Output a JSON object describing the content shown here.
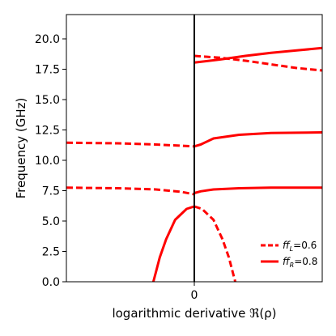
{
  "chart_data": {
    "type": "line",
    "title": "",
    "xlabel": "logarithmic derivative ℜ(ρ)",
    "ylabel": "Frequency (GHz)",
    "xlim": [
      -1,
      1
    ],
    "ylim": [
      0,
      22
    ],
    "xticks": [
      0
    ],
    "xtick_labels": [
      "0"
    ],
    "yticks": [
      0,
      2.5,
      5,
      7.5,
      10,
      12.5,
      15,
      17.5,
      20
    ],
    "ytick_labels": [
      "0.0",
      "2.5",
      "5.0",
      "7.5",
      "10.0",
      "12.5",
      "15.0",
      "17.5",
      "20.0"
    ],
    "grid": false,
    "legend_position": "lower-right",
    "color": "#ff0000",
    "zero_line_color": "#000000",
    "series": [
      {
        "name": "ff_L=0.6",
        "style": "dashed",
        "branches": [
          {
            "x": [
              -1.0,
              -0.6,
              -0.3,
              -0.1,
              0.0
            ],
            "y": [
              7.75,
              7.7,
              7.6,
              7.4,
              7.2
            ]
          },
          {
            "x": [
              -1.0,
              -0.6,
              -0.3,
              -0.1,
              0.0
            ],
            "y": [
              11.45,
              11.4,
              11.3,
              11.2,
              11.15
            ]
          },
          {
            "x": [
              0.0,
              0.2,
              0.4,
              0.6,
              0.8,
              1.0
            ],
            "y": [
              18.6,
              18.45,
              18.2,
              17.9,
              17.6,
              17.4
            ]
          },
          {
            "x": [
              0.0,
              0.06,
              0.15,
              0.22,
              0.27,
              0.3,
              0.32
            ],
            "y": [
              6.2,
              6.0,
              5.1,
              3.5,
              2.0,
              0.8,
              0.0
            ]
          }
        ]
      },
      {
        "name": "ff_R=0.8",
        "style": "solid",
        "branches": [
          {
            "x": [
              0.0,
              0.05,
              0.15,
              0.35,
              0.6,
              1.0
            ],
            "y": [
              7.3,
              7.45,
              7.6,
              7.7,
              7.75,
              7.75
            ]
          },
          {
            "x": [
              0.0,
              0.05,
              0.15,
              0.35,
              0.6,
              1.0
            ],
            "y": [
              11.15,
              11.3,
              11.8,
              12.1,
              12.25,
              12.3
            ]
          },
          {
            "x": [
              0.0,
              0.2,
              0.4,
              0.6,
              0.8,
              1.0
            ],
            "y": [
              18.05,
              18.3,
              18.6,
              18.85,
              19.05,
              19.25
            ]
          },
          {
            "x": [
              -0.32,
              -0.3,
              -0.27,
              -0.22,
              -0.15,
              -0.06,
              0.0
            ],
            "y": [
              0.0,
              0.8,
              2.0,
              3.5,
              5.1,
              6.0,
              6.2
            ]
          }
        ]
      }
    ],
    "legend": [
      {
        "prefix": "ff",
        "sub": "L",
        "suffix": "=0.6",
        "style": "dashed"
      },
      {
        "prefix": "ff",
        "sub": "R",
        "suffix": "=0.8",
        "style": "solid"
      }
    ]
  }
}
